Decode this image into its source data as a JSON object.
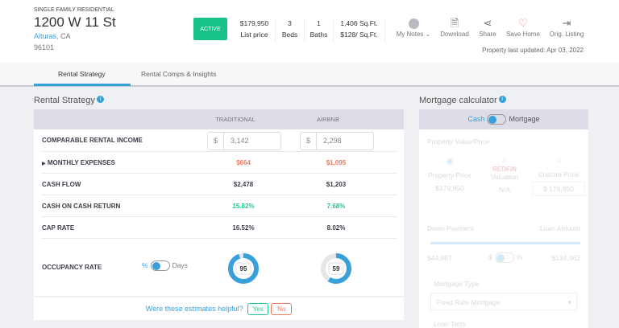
{
  "property": {
    "type": "SINGLE FAMILY RESIDENTIAL",
    "address": "1200 W 11 St",
    "city": "Alturas,",
    "state": "CA",
    "zip": "96101",
    "status": "ACTIVE",
    "price": "$179,950",
    "price_label": "List price",
    "beds": "3",
    "beds_label": "Beds",
    "baths": "1",
    "baths_label": "Baths",
    "sqft": "1,406 Sq.Ft.",
    "price_per_sqft": "$128/ Sq.Ft.",
    "updated": "Property last updated: Apr 03, 2022"
  },
  "actions": [
    {
      "label": "My Notes ⌄",
      "icon": "avatar-icon"
    },
    {
      "label": "Download",
      "icon": "pdf-icon"
    },
    {
      "label": "Share",
      "icon": "share-icon"
    },
    {
      "label": "Save Home",
      "icon": "heart-icon"
    },
    {
      "label": "Orig. Listing",
      "icon": "exit-icon"
    }
  ],
  "tabs": [
    {
      "label": "Rental Strategy",
      "active": true
    },
    {
      "label": "Rental Comps & Insights",
      "active": false
    }
  ],
  "rental": {
    "title": "Rental Strategy",
    "col1": "TRADITIONAL",
    "col2": "AIRBNB",
    "income": {
      "label": "COMPARABLE RENTAL INCOME",
      "currency": "$",
      "v1": "3,142",
      "v2": "2,298"
    },
    "expenses": {
      "label": "MONTHLY EXPENSES",
      "v1": "$664",
      "v2": "$1,095"
    },
    "cashflow": {
      "label": "CASH FLOW",
      "v1": "$2,478",
      "v2": "$1,203"
    },
    "coc": {
      "label": "CASH ON CASH RETURN",
      "v1": "15.82%",
      "v2": "7.68%"
    },
    "cap": {
      "label": "CAP RATE",
      "v1": "16.52%",
      "v2": "8.02%"
    },
    "occupancy": {
      "label": "OCCUPANCY RATE",
      "toggle_left": "%",
      "toggle_right": "Days",
      "v1": "95",
      "v2": "59"
    },
    "feedback": {
      "question": "Were these estimates helpful?",
      "yes": "Yes",
      "no": "No"
    }
  },
  "mortgage": {
    "title": "Mortgage calculator",
    "cash": "Cash",
    "mortgage": "Mortgage",
    "pv_label": "Property Value/Price",
    "opt1": "Property Price",
    "opt1_val": "$179,950",
    "opt2_brand": "REDFIN",
    "opt2": "Valuation",
    "opt2_val": "N/A",
    "opt3": "Custom Price",
    "opt3_val": "179,950",
    "down": "Down Payment",
    "loan": "Loan Amount",
    "down_val": "$44,987",
    "loan_val": "$134,962",
    "dollar": "$",
    "pct": "%",
    "type_label": "Mortgage Type",
    "type_val": "Fixed Rate Mortgage",
    "term_label": "Loan Term"
  },
  "colors": {
    "accent": "#3aa0dc",
    "active": "#18c08a",
    "red": "#f07a5c",
    "green": "#1fc794"
  }
}
